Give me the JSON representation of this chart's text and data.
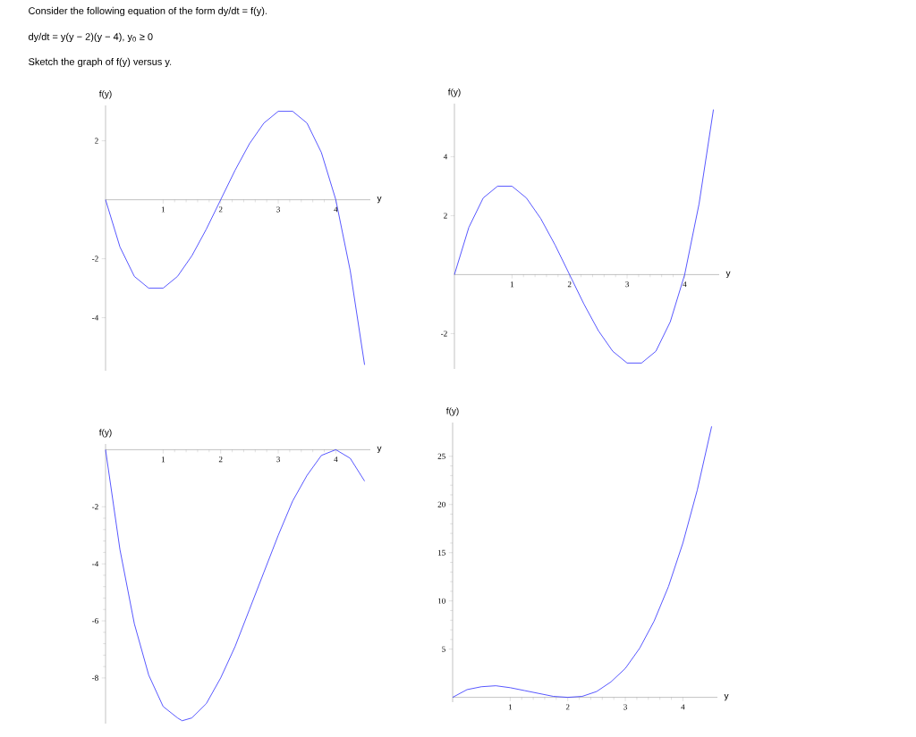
{
  "chart_data": [
    {
      "type": "line",
      "title": "Consider the following equation of the form dy/dt = f(y).",
      "annotations": [
        "dy/dt = y(y − 2)(y − 4),   y$_{0}$ ≥ 0",
        "Sketch the graph of f(y) versus y."
      ],
      "xlabel": "y",
      "ylabel": "f(y)",
      "xlim": [
        0,
        4.6
      ],
      "ylim": [
        -5.8,
        3.2
      ],
      "xticks": [
        1,
        2,
        3,
        4
      ],
      "yticks": [
        -4,
        -2,
        2
      ],
      "grid": false,
      "color": "#2d2dff",
      "x": [
        0,
        0.25,
        0.5,
        0.75,
        1,
        1.25,
        1.5,
        1.75,
        2,
        2.25,
        2.5,
        2.75,
        3,
        3.25,
        3.5,
        3.75,
        4,
        4.25,
        4.5
      ],
      "values": [
        0,
        -1.6,
        -2.6,
        -3.0,
        -3.0,
        -2.6,
        -1.9,
        -1.0,
        0,
        1.0,
        1.9,
        2.6,
        3.0,
        3.0,
        2.6,
        1.6,
        0,
        -2.4,
        -5.6
      ]
    },
    {
      "type": "line",
      "xlabel": "y",
      "ylabel": "f(y)",
      "xlim": [
        0,
        4.6
      ],
      "ylim": [
        -3.2,
        5.8
      ],
      "xticks": [
        1,
        2,
        3,
        4
      ],
      "yticks": [
        -2,
        2,
        4
      ],
      "grid": false,
      "color": "#2d2dff",
      "x": [
        0,
        0.25,
        0.5,
        0.75,
        1,
        1.25,
        1.5,
        1.75,
        2,
        2.25,
        2.5,
        2.75,
        3,
        3.25,
        3.5,
        3.75,
        4,
        4.25,
        4.5
      ],
      "values": [
        0,
        1.6,
        2.6,
        3.0,
        3.0,
        2.6,
        1.9,
        1.0,
        0,
        -1.0,
        -1.9,
        -2.6,
        -3.0,
        -3.0,
        -2.6,
        -1.6,
        0,
        2.4,
        5.6
      ]
    },
    {
      "type": "line",
      "xlabel": "y",
      "ylabel": "f(y)",
      "xlim": [
        0,
        4.6
      ],
      "ylim": [
        -9.6,
        0.2
      ],
      "xticks": [
        1,
        2,
        3,
        4
      ],
      "yticks": [
        -8,
        -6,
        -4,
        -2
      ],
      "grid": false,
      "color": "#2d2dff",
      "x": [
        0,
        0.25,
        0.5,
        0.75,
        1,
        1.25,
        1.33,
        1.5,
        1.75,
        2,
        2.25,
        2.5,
        2.75,
        3,
        3.25,
        3.5,
        3.75,
        4,
        4.25,
        4.5
      ],
      "values": [
        0,
        -3.5,
        -6.1,
        -7.9,
        -9.0,
        -9.4,
        -9.5,
        -9.4,
        -8.9,
        -8.0,
        -6.9,
        -5.6,
        -4.3,
        -3.0,
        -1.8,
        -0.9,
        -0.2,
        0,
        -0.3,
        -1.1
      ]
    },
    {
      "type": "line",
      "xlabel": "y",
      "ylabel": "f(y)",
      "xlim": [
        0,
        4.6
      ],
      "ylim": [
        -0.5,
        28.5
      ],
      "xticks": [
        1,
        2,
        3,
        4
      ],
      "yticks": [
        5,
        10,
        15,
        20,
        25
      ],
      "grid": false,
      "color": "#2d2dff",
      "x": [
        0,
        0.25,
        0.5,
        0.75,
        1,
        1.25,
        1.5,
        1.75,
        2,
        2.25,
        2.5,
        2.75,
        3,
        3.25,
        3.5,
        3.75,
        4,
        4.25,
        4.5
      ],
      "values": [
        0,
        0.8,
        1.1,
        1.2,
        1.0,
        0.7,
        0.4,
        0.1,
        0,
        0.1,
        0.6,
        1.6,
        3.0,
        5.1,
        7.9,
        11.5,
        16.0,
        21.5,
        28.1
      ]
    }
  ]
}
